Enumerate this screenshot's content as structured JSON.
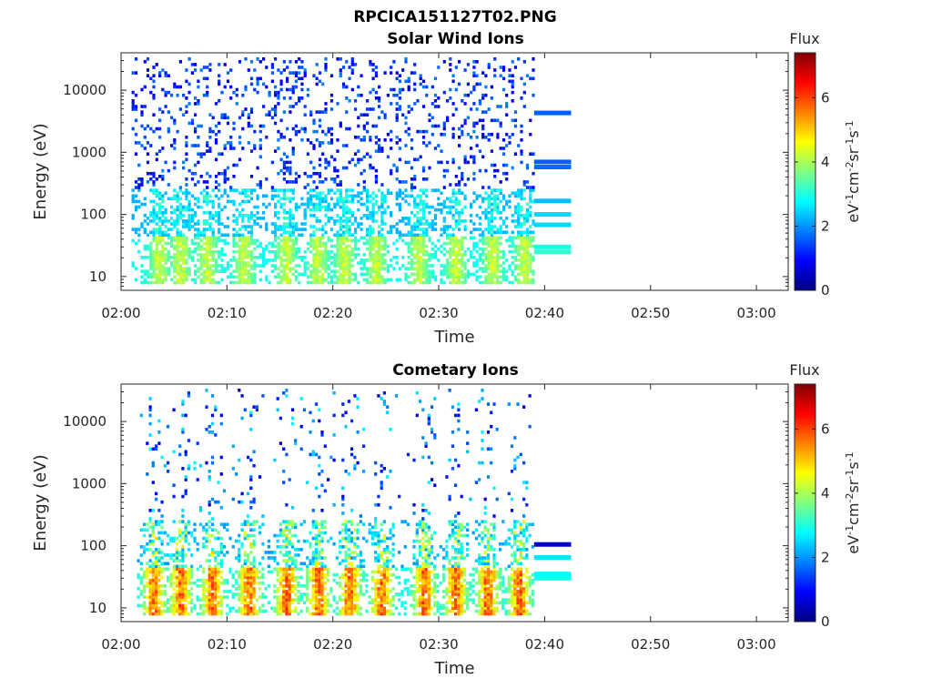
{
  "figure_title": "RPCICA151127T02.PNG",
  "chart_data": [
    {
      "type": "heatmap",
      "title": "Solar Wind Ions",
      "xlabel": "Time",
      "ylabel": "Energy (eV)",
      "yscale": "log",
      "ylim": [
        6,
        40000
      ],
      "xlim": [
        "02:00",
        "03:03"
      ],
      "xticks": [
        "02:00",
        "02:10",
        "02:20",
        "02:30",
        "02:40",
        "02:50",
        "03:00"
      ],
      "yticks": [
        "10",
        "100",
        "1000",
        "10000"
      ],
      "colorbar": {
        "label": "Flux",
        "units": "eV-1cm-2sr-1s-1",
        "range": [
          0,
          7.4
        ],
        "ticks": [
          "0",
          "2",
          "4",
          "6"
        ],
        "colormap": "jet"
      },
      "data_extent_minutes": [
        1,
        39
      ],
      "bursts_minutes": [
        3.5,
        5.5,
        8,
        11.5,
        15.5,
        18.5,
        21,
        24,
        28,
        31.5,
        35,
        38
      ],
      "core_energy_range_eV": [
        10,
        45
      ],
      "core_flux": 4.5,
      "extension_bars": [
        {
          "energy_eV": 4300,
          "flux": 1.6
        },
        {
          "energy_eV": 700,
          "flux": 1.6
        },
        {
          "energy_eV": 580,
          "flux": 1.7
        },
        {
          "energy_eV": 165,
          "flux": 2.3
        },
        {
          "energy_eV": 100,
          "flux": 2.5
        },
        {
          "energy_eV": 68,
          "flux": 2.5
        },
        {
          "energy_eV": 30,
          "flux": 3.0
        },
        {
          "energy_eV": 25,
          "flux": 3.1
        }
      ],
      "extension_minutes": [
        39,
        42.5
      ]
    },
    {
      "type": "heatmap",
      "title": "Cometary Ions",
      "xlabel": "Time",
      "ylabel": "Energy (eV)",
      "yscale": "log",
      "ylim": [
        6,
        40000
      ],
      "xlim": [
        "02:00",
        "03:03"
      ],
      "xticks": [
        "02:00",
        "02:10",
        "02:20",
        "02:30",
        "02:40",
        "02:50",
        "03:00"
      ],
      "yticks": [
        "10",
        "100",
        "1000",
        "10000"
      ],
      "colorbar": {
        "label": "Flux",
        "units": "eV-1cm-2sr-1s-1",
        "range": [
          0,
          7.4
        ],
        "ticks": [
          "0",
          "2",
          "4",
          "6"
        ],
        "colormap": "jet"
      },
      "data_extent_minutes": [
        1.5,
        39
      ],
      "bursts_minutes": [
        3,
        5.5,
        8.5,
        12,
        15.5,
        18.5,
        21.5,
        24.5,
        28.5,
        31.5,
        34.5,
        37.5
      ],
      "core_energy_range_eV": [
        10,
        45
      ],
      "core_flux": 6.3,
      "extension_bars": [
        {
          "energy_eV": 105,
          "flux": 0.5
        },
        {
          "energy_eV": 65,
          "flux": 2.6
        },
        {
          "energy_eV": 35,
          "flux": 2.8
        },
        {
          "energy_eV": 30,
          "flux": 2.9
        }
      ],
      "extension_minutes": [
        39,
        42.5
      ]
    }
  ]
}
